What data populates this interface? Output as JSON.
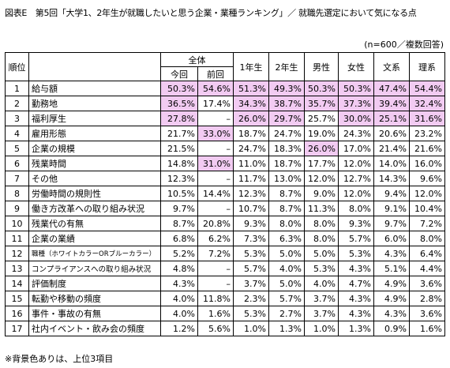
{
  "header": {
    "title": "図表E　第5回「大学1、2年生が就職したいと思う企業・業種ランキング」／ 就職先選定において気になる点",
    "note": "(n=600／複数回答)"
  },
  "table": {
    "headers": {
      "rank": "順位",
      "group": "全体",
      "current": "今回",
      "previous": "前回",
      "columns": [
        "1年生",
        "2年生",
        "男性",
        "女性",
        "文系",
        "理系"
      ]
    },
    "rows": [
      {
        "rank": "1",
        "item": "給与額",
        "cells": [
          "50.3%",
          "54.6%",
          "51.3%",
          "49.3%",
          "50.3%",
          "50.3%",
          "47.4%",
          "54.4%"
        ],
        "highlight": [
          0,
          1,
          2,
          3,
          4,
          5,
          6,
          7
        ]
      },
      {
        "rank": "2",
        "item": "勤務地",
        "cells": [
          "36.5%",
          "17.4%",
          "34.3%",
          "38.7%",
          "35.7%",
          "37.3%",
          "39.4%",
          "32.4%"
        ],
        "highlight": [
          0,
          2,
          3,
          4,
          5,
          6,
          7
        ]
      },
      {
        "rank": "3",
        "item": "福利厚生",
        "cells": [
          "27.8%",
          "–",
          "26.0%",
          "29.7%",
          "25.7%",
          "30.0%",
          "25.1%",
          "31.6%"
        ],
        "highlight": [
          0,
          2,
          3,
          5,
          6,
          7
        ]
      },
      {
        "rank": "4",
        "item": "雇用形態",
        "cells": [
          "21.7%",
          "33.0%",
          "18.7%",
          "24.7%",
          "19.0%",
          "24.3%",
          "20.6%",
          "23.2%"
        ],
        "highlight": [
          1
        ]
      },
      {
        "rank": "5",
        "item": "企業の規模",
        "cells": [
          "21.5%",
          "–",
          "24.7%",
          "18.3%",
          "26.0%",
          "17.0%",
          "21.4%",
          "21.6%"
        ],
        "highlight": [
          4
        ]
      },
      {
        "rank": "6",
        "item": "残業時間",
        "cells": [
          "14.8%",
          "31.0%",
          "11.0%",
          "18.7%",
          "17.7%",
          "12.0%",
          "14.0%",
          "16.0%"
        ],
        "highlight": [
          1
        ]
      },
      {
        "rank": "7",
        "item": "その他",
        "cells": [
          "12.3%",
          "–",
          "11.7%",
          "13.0%",
          "12.0%",
          "12.7%",
          "14.3%",
          "9.6%"
        ],
        "highlight": []
      },
      {
        "rank": "8",
        "item": "労働時間の規則性",
        "cells": [
          "10.5%",
          "14.4%",
          "12.3%",
          "8.7%",
          "9.0%",
          "12.0%",
          "9.4%",
          "12.0%"
        ],
        "highlight": []
      },
      {
        "rank": "9",
        "item": "働き方改革への取り組み状況",
        "cells": [
          "9.7%",
          "–",
          "10.7%",
          "8.7%",
          "11.3%",
          "8.0%",
          "9.1%",
          "10.4%"
        ],
        "highlight": []
      },
      {
        "rank": "10",
        "item": "残業代の有無",
        "cells": [
          "8.7%",
          "20.8%",
          "9.3%",
          "8.0%",
          "8.0%",
          "9.3%",
          "9.7%",
          "7.2%"
        ],
        "highlight": []
      },
      {
        "rank": "11",
        "item": "企業の業績",
        "cells": [
          "6.8%",
          "6.2%",
          "7.3%",
          "6.3%",
          "8.0%",
          "5.7%",
          "6.0%",
          "8.0%"
        ],
        "highlight": []
      },
      {
        "rank": "12",
        "item": "職種（ホワイトカラーORブルーカラー）",
        "cells": [
          "5.2%",
          "7.2%",
          "5.3%",
          "5.0%",
          "5.0%",
          "5.3%",
          "4.3%",
          "6.4%"
        ],
        "highlight": []
      },
      {
        "rank": "13",
        "item": "コンプライアンスへの取り組み状況",
        "cells": [
          "4.8%",
          "–",
          "5.7%",
          "4.0%",
          "5.3%",
          "4.3%",
          "5.1%",
          "4.4%"
        ],
        "highlight": []
      },
      {
        "rank": "14",
        "item": "評価制度",
        "cells": [
          "4.3%",
          "–",
          "3.7%",
          "5.0%",
          "4.0%",
          "4.7%",
          "4.9%",
          "3.6%"
        ],
        "highlight": []
      },
      {
        "rank": "15",
        "item": "転勤や移動の頻度",
        "cells": [
          "4.0%",
          "11.8%",
          "2.3%",
          "5.7%",
          "3.7%",
          "4.3%",
          "4.9%",
          "2.8%"
        ],
        "highlight": []
      },
      {
        "rank": "16",
        "item": "事件・事故の有無",
        "cells": [
          "4.0%",
          "1.6%",
          "5.3%",
          "2.7%",
          "3.7%",
          "4.3%",
          "4.3%",
          "3.6%"
        ],
        "highlight": []
      },
      {
        "rank": "17",
        "item": "社内イベント・飲み会の頻度",
        "cells": [
          "1.2%",
          "5.6%",
          "1.0%",
          "1.3%",
          "1.0%",
          "1.3%",
          "0.9%",
          "1.6%"
        ],
        "highlight": []
      }
    ],
    "highlight_color": "#f2cbf2"
  },
  "footnote": "※背景色ありは、上位3項目"
}
